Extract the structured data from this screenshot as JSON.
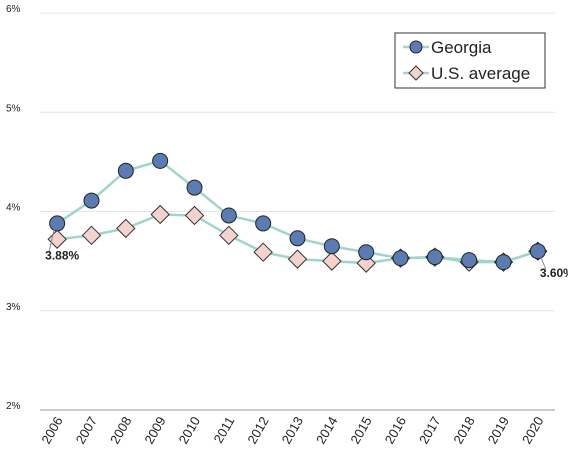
{
  "chart_data": {
    "type": "line",
    "categories": [
      "2006",
      "2007",
      "2008",
      "2009",
      "2010",
      "2011",
      "2012",
      "2013",
      "2014",
      "2015",
      "2016",
      "2017",
      "2018",
      "2019",
      "2020"
    ],
    "series": [
      {
        "name": "Georgia",
        "color": "#5a7cb3",
        "marker": "circle",
        "values": [
          3.88,
          4.11,
          4.41,
          4.51,
          4.24,
          3.96,
          3.88,
          3.73,
          3.65,
          3.59,
          3.53,
          3.54,
          3.51,
          3.49,
          3.6
        ],
        "value_labels": [
          "3.88%",
          null,
          null,
          null,
          null,
          null,
          null,
          null,
          null,
          null,
          null,
          null,
          null,
          null,
          "3.60%"
        ]
      },
      {
        "name": "U.S. average",
        "color": "#f4d3cc",
        "marker": "diamond",
        "values": [
          3.72,
          3.76,
          3.83,
          3.97,
          3.96,
          3.76,
          3.59,
          3.52,
          3.5,
          3.48,
          3.53,
          3.54,
          3.49,
          3.49,
          3.6
        ]
      }
    ],
    "line_color": "#9fd6c6",
    "ylim": [
      2,
      6
    ],
    "yticks": [
      {
        "value": 2,
        "label": "2%"
      },
      {
        "value": 3,
        "label": "3%"
      },
      {
        "value": 4,
        "label": "4%"
      },
      {
        "value": 5,
        "label": "5%"
      },
      {
        "value": 6,
        "label": "6%"
      }
    ],
    "grid": true,
    "legend": "top-right"
  }
}
